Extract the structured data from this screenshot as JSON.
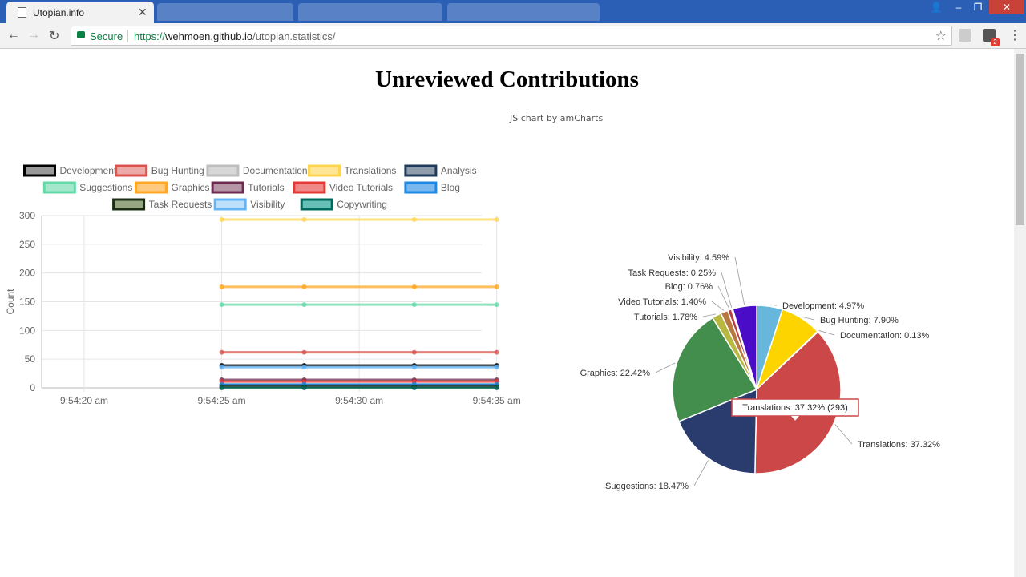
{
  "browser": {
    "tab_title": "Utopian.info",
    "secure_label": "Secure",
    "url_scheme": "https://",
    "url_host": "wehmoen.github.io",
    "url_path": "/utopian.statistics/",
    "extension_badge": "2"
  },
  "page": {
    "title": "Unreviewed Contributions",
    "amcharts_credit": "JS chart by amCharts"
  },
  "chart_data": [
    {
      "type": "line",
      "ylabel": "Count",
      "xlabel": "",
      "ylim": [
        0,
        300
      ],
      "y_ticks": [
        0,
        50,
        100,
        150,
        200,
        250,
        300
      ],
      "x_tick_labels": [
        "9:54:20 am",
        "9:54:25 am",
        "9:54:30 am",
        "9:54:35 am"
      ],
      "legend_placement": "top",
      "grid": true,
      "x": [
        "9:54:25 am",
        "9:54:28 am",
        "9:54:32 am",
        "9:54:35 am"
      ],
      "series": [
        {
          "name": "Development",
          "color": "#000000",
          "fill": "rgba(0,0,0,0.4)",
          "values": [
            39,
            39,
            39,
            39
          ]
        },
        {
          "name": "Bug Hunting",
          "color": "#d9534f",
          "fill": "rgba(217,83,79,0.5)",
          "values": [
            62,
            62,
            62,
            62
          ]
        },
        {
          "name": "Documentation",
          "color": "#bdbdbd",
          "fill": "rgba(189,189,189,0.6)",
          "values": [
            1,
            1,
            1,
            1
          ]
        },
        {
          "name": "Translations",
          "color": "#ffd54f",
          "fill": "rgba(255,213,79,0.6)",
          "values": [
            293,
            293,
            293,
            293
          ]
        },
        {
          "name": "Analysis",
          "color": "#1f3a5a",
          "fill": "rgba(31,58,90,0.5)",
          "values": [
            5,
            5,
            5,
            5
          ]
        },
        {
          "name": "Suggestions",
          "color": "#66d9a8",
          "fill": "rgba(102,217,168,0.6)",
          "values": [
            145,
            145,
            145,
            145
          ]
        },
        {
          "name": "Graphics",
          "color": "#ffa726",
          "fill": "rgba(255,167,38,0.6)",
          "values": [
            176,
            176,
            176,
            176
          ]
        },
        {
          "name": "Tutorials",
          "color": "#6d2b4f",
          "fill": "rgba(109,43,79,0.5)",
          "values": [
            14,
            14,
            14,
            14
          ]
        },
        {
          "name": "Video Tutorials",
          "color": "#e53935",
          "fill": "rgba(229,57,53,0.6)",
          "values": [
            11,
            11,
            11,
            11
          ]
        },
        {
          "name": "Blog",
          "color": "#1e88e5",
          "fill": "rgba(30,136,229,0.6)",
          "values": [
            6,
            6,
            6,
            6
          ]
        },
        {
          "name": "Task Requests",
          "color": "#1b2e12",
          "fill": "rgba(85,107,47,0.6)",
          "values": [
            2,
            2,
            2,
            2
          ]
        },
        {
          "name": "Visibility",
          "color": "#64b5f6",
          "fill": "rgba(144,202,249,0.6)",
          "values": [
            36,
            36,
            36,
            36
          ]
        },
        {
          "name": "Copywriting",
          "color": "#00695c",
          "fill": "rgba(0,150,136,0.6)",
          "values": [
            0,
            0,
            0,
            0
          ]
        }
      ]
    },
    {
      "type": "pie",
      "start_angle_deg": 0,
      "slices": [
        {
          "label": "Development: 4.97%",
          "value": 4.97,
          "color": "#67b7dc"
        },
        {
          "label": "Bug Hunting: 7.90%",
          "value": 7.9,
          "color": "#fdd400"
        },
        {
          "label": "Documentation: 0.13%",
          "value": 0.13,
          "color": "#84b761"
        },
        {
          "label": "Translations: 37.32%",
          "value": 37.32,
          "color": "#cc4748"
        },
        {
          "label": "Suggestions: 18.47%",
          "value": 18.47,
          "color": "#2a3c6e"
        },
        {
          "label": "Graphics: 22.42%",
          "value": 22.42,
          "color": "#448e4d"
        },
        {
          "label": "Tutorials: 1.78%",
          "value": 1.78,
          "color": "#b7b83f"
        },
        {
          "label": "Video Tutorials: 1.40%",
          "value": 1.4,
          "color": "#b9783f"
        },
        {
          "label": "Blog: 0.76%",
          "value": 0.76,
          "color": "#b93e3d"
        },
        {
          "label": "Task Requests: 0.25%",
          "value": 0.25,
          "color": "#913167"
        },
        {
          "label": "Visibility: 4.59%",
          "value": 4.59,
          "color": "#4b0cc8"
        }
      ],
      "tooltip": "Translations: 37.32% (293)"
    }
  ]
}
